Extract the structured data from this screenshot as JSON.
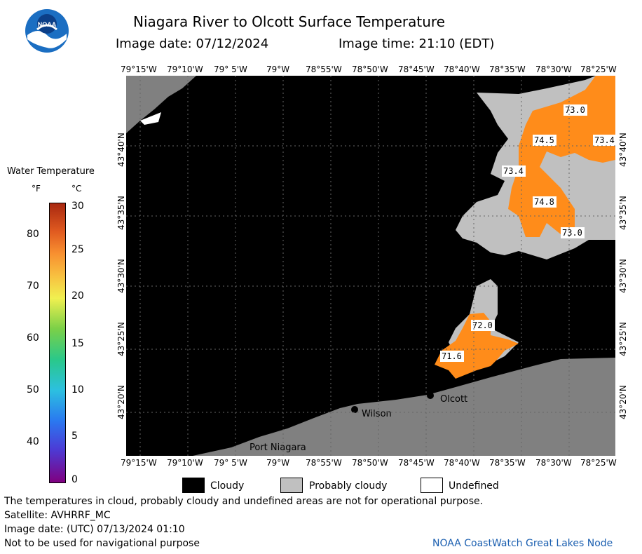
{
  "header": {
    "title": "Niagara River to Olcott Surface Temperature",
    "image_date": "Image date: 07/12/2024",
    "image_time": "Image time: 21:10 (EDT)"
  },
  "logo": {
    "text": "NOAA"
  },
  "colorbar": {
    "title": "Water Temperature",
    "unit_f": "°F",
    "unit_c": "°C",
    "f_ticks": [
      "80",
      "70",
      "60",
      "50",
      "40"
    ],
    "c_ticks": [
      "30",
      "25",
      "20",
      "15",
      "10",
      "5",
      "0"
    ]
  },
  "axes": {
    "lon_ticks": [
      "79°15'W",
      "79°10'W",
      "79° 5'W",
      "79°W",
      "78°55'W",
      "78°50'W",
      "78°45'W",
      "78°40'W",
      "78°35'W",
      "78°30'W",
      "78°25'W"
    ],
    "lat_ticks": [
      "43°40'N",
      "43°35'N",
      "43°30'N",
      "43°25'N",
      "43°20'N"
    ]
  },
  "map": {
    "temperature_labels": [
      "73.0",
      "74.5",
      "73.4",
      "73.4",
      "74.8",
      "73.0",
      "72.0",
      "71.6"
    ],
    "places": [
      "Olcott",
      "Wilson",
      "Port Niagara"
    ],
    "colors": {
      "cloudy": "#000000",
      "probably_cloudy": "#c0c0c0",
      "land": "#808080",
      "warm_water": "#ff8c1a"
    }
  },
  "legend": {
    "cloudy": "Cloudy",
    "probably_cloudy": "Probably cloudy",
    "undefined": "Undefined"
  },
  "footer": {
    "note": "The temperatures in cloud, probably cloudy and undefined areas are not for operational purpose.",
    "satellite": "Satellite: AVHRRF_MC",
    "utc_date": "Image date: (UTC) 07/13/2024  01:10",
    "nav_warning": "Not to be used for navigational purpose",
    "credit": "NOAA CoastWatch Great Lakes Node"
  }
}
